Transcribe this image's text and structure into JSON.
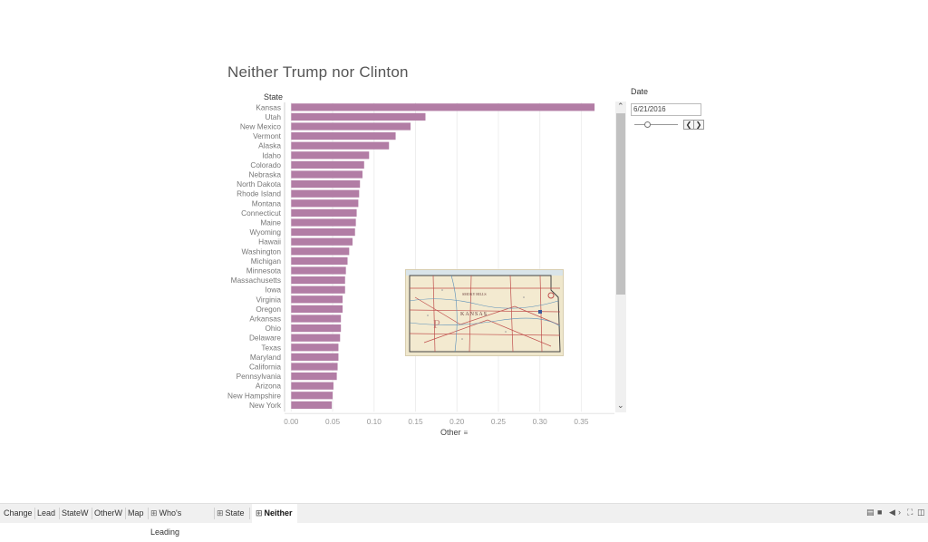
{
  "title": "Neither Trump nor Clinton",
  "state_header": "State",
  "axis_title": "Other",
  "icons": {
    "sort": "sort-descending-icon",
    "scroll_up": "chevron-up-icon",
    "scroll_down": "chevron-down-icon",
    "sheet": "grid-icon"
  },
  "colors": {
    "bar": "#b27da5",
    "grid": "#eeeeee",
    "axis_text": "#999999"
  },
  "chart_data": {
    "type": "bar",
    "orientation": "horizontal",
    "categories": [
      "Kansas",
      "Utah",
      "New Mexico",
      "Vermont",
      "Alaska",
      "Idaho",
      "Colorado",
      "Nebraska",
      "North Dakota",
      "Rhode Island",
      "Montana",
      "Connecticut",
      "Maine",
      "Wyoming",
      "Hawaii",
      "Washington",
      "Michigan",
      "Minnesota",
      "Massachusetts",
      "Iowa",
      "Virginia",
      "Oregon",
      "Arkansas",
      "Ohio",
      "Delaware",
      "Texas",
      "Maryland",
      "California",
      "Pennsylvania",
      "Arizona",
      "New Hampshire",
      "New York"
    ],
    "values": [
      0.366,
      0.162,
      0.144,
      0.126,
      0.118,
      0.094,
      0.088,
      0.086,
      0.083,
      0.082,
      0.081,
      0.079,
      0.078,
      0.077,
      0.074,
      0.07,
      0.068,
      0.066,
      0.065,
      0.065,
      0.062,
      0.062,
      0.06,
      0.06,
      0.059,
      0.057,
      0.057,
      0.056,
      0.055,
      0.051,
      0.05,
      0.049
    ],
    "xticks": [
      "0.00",
      "0.05",
      "0.10",
      "0.15",
      "0.20",
      "0.25",
      "0.30",
      "0.35"
    ],
    "xlim": [
      -0.008,
      0.39
    ],
    "xlabel": "Other",
    "ylabel": "State",
    "grid": true
  },
  "map_inset": {
    "labels": [
      "KANSAS",
      "SMOKY HILLS"
    ],
    "colors": {
      "paper": "#efe7cc",
      "roads": "#c0504d",
      "rivers": "#5a8fb8",
      "border": "#444444",
      "text": "#6b3d3d"
    }
  },
  "date_filter": {
    "label": "Date",
    "value": "6/21/2016",
    "prev_icon": "chevron-left-icon",
    "next_icon": "chevron-right-icon",
    "prev": "❮",
    "next": "❯",
    "slider_value": 0.3
  },
  "tabs": [
    {
      "label": "Change",
      "active": false,
      "grid": false
    },
    {
      "label": "Lead",
      "active": false,
      "grid": false
    },
    {
      "label": "StateW",
      "active": false,
      "grid": false
    },
    {
      "label": "OtherW",
      "active": false,
      "grid": false
    },
    {
      "label": "Map",
      "active": false,
      "grid": false
    },
    {
      "label": "Who's Leading",
      "active": false,
      "grid": true
    },
    {
      "label": "State",
      "active": false,
      "grid": true
    },
    {
      "label": "Neither",
      "active": true,
      "grid": true
    }
  ],
  "toolbar_icons": [
    "list-view-icon",
    "grid-view-icon",
    "previous-icon",
    "next-icon",
    "fullscreen-icon",
    "presentation-icon"
  ]
}
